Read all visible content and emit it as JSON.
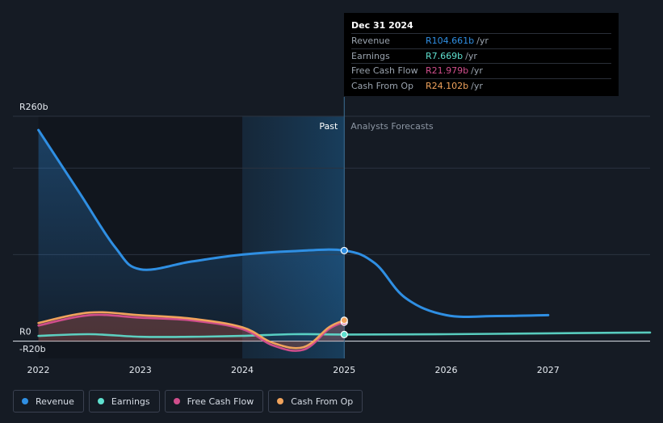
{
  "chart_data": {
    "type": "line",
    "currency_prefix": "R",
    "y_unit": "b",
    "ylim": [
      -20,
      260
    ],
    "y_labels": {
      "top": "R260b",
      "zero": "R0",
      "bottom": "-R20b"
    },
    "x_ticks": [
      "2022",
      "2023",
      "2024",
      "2025",
      "2026",
      "2027"
    ],
    "x_tick_values": [
      2022,
      2023,
      2024,
      2025,
      2026,
      2027
    ],
    "xlim": [
      2021.75,
      2028.0
    ],
    "past_label": "Past",
    "forecast_label": "Analysts Forecasts",
    "divider_x": 2025.0,
    "highlight_start": 2024.0,
    "series": [
      {
        "name": "Revenue",
        "color": "#2f8fe3",
        "x": [
          2022.0,
          2022.4,
          2022.75,
          2023.0,
          2023.5,
          2024.0,
          2024.5,
          2025.0,
          2025.3,
          2025.6,
          2026.0,
          2026.5,
          2027.0
        ],
        "y": [
          244,
          172,
          109,
          83,
          92,
          100,
          104,
          104.661,
          90,
          50,
          30,
          29,
          30
        ]
      },
      {
        "name": "Earnings",
        "color": "#5fe0cf",
        "x": [
          2022.0,
          2022.5,
          2023.0,
          2023.5,
          2024.0,
          2024.5,
          2025.0,
          2026.0,
          2027.0,
          2028.0
        ],
        "y": [
          6,
          8,
          5,
          5,
          6,
          8,
          7.669,
          8,
          9,
          10
        ]
      },
      {
        "name": "Free Cash Flow",
        "color": "#d04e8c",
        "x": [
          2022.0,
          2022.5,
          2023.0,
          2023.5,
          2024.0,
          2024.3,
          2024.6,
          2024.85,
          2025.0
        ],
        "y": [
          18,
          30,
          27,
          24,
          14,
          -5,
          -10,
          14,
          21.979
        ]
      },
      {
        "name": "Cash From Op",
        "color": "#f0a35c",
        "x": [
          2022.0,
          2022.5,
          2023.0,
          2023.5,
          2024.0,
          2024.3,
          2024.6,
          2024.85,
          2025.0
        ],
        "y": [
          21,
          33,
          30,
          26,
          16,
          -2,
          -7,
          16,
          24.102
        ]
      }
    ]
  },
  "tooltip": {
    "date": "Dec 31 2024",
    "rows": [
      {
        "label": "Revenue",
        "value": "R104.661b",
        "unit": "/yr",
        "color": "#2f8fe3"
      },
      {
        "label": "Earnings",
        "value": "R7.669b",
        "unit": "/yr",
        "color": "#5fe0cf"
      },
      {
        "label": "Free Cash Flow",
        "value": "R21.979b",
        "unit": "/yr",
        "color": "#d04e8c"
      },
      {
        "label": "Cash From Op",
        "value": "R24.102b",
        "unit": "/yr",
        "color": "#f0a35c"
      }
    ]
  },
  "legend": [
    {
      "label": "Revenue",
      "color": "#2f8fe3"
    },
    {
      "label": "Earnings",
      "color": "#5fe0cf"
    },
    {
      "label": "Free Cash Flow",
      "color": "#d04e8c"
    },
    {
      "label": "Cash From Op",
      "color": "#f0a35c"
    }
  ]
}
